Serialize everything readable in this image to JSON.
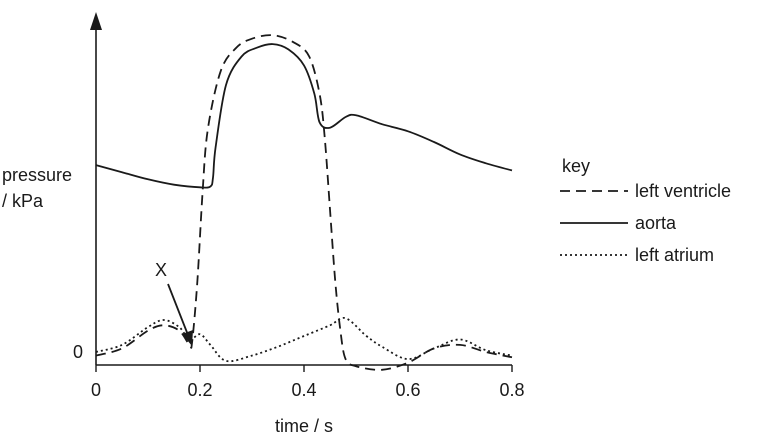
{
  "chart_data": {
    "type": "line",
    "xlabel": "time / s",
    "ylabel_line1": "pressure",
    "ylabel_line2": "/ kPa",
    "xlim": [
      0,
      0.8
    ],
    "x_ticks": [
      "0",
      "0.2",
      "0.4",
      "0.6",
      "0.8"
    ],
    "y_tick_zero": "0",
    "grid": false,
    "legend": {
      "title": "key",
      "placement": "right"
    },
    "annotation": {
      "label": "X",
      "x": 0.18,
      "y": 0.4
    },
    "series": [
      {
        "name": "left ventricle",
        "style": "dashed",
        "x": [
          0.0,
          0.05,
          0.1,
          0.13,
          0.16,
          0.18,
          0.185,
          0.195,
          0.205,
          0.215,
          0.24,
          0.27,
          0.3,
          0.34,
          0.38,
          0.41,
          0.43,
          0.44,
          0.45,
          0.46,
          0.47,
          0.48,
          0.5,
          0.55,
          0.6,
          0.65,
          0.7,
          0.75,
          0.8
        ],
        "y": [
          -0.2,
          0.2,
          1.2,
          1.5,
          1.2,
          0.4,
          0.6,
          4,
          9,
          12.5,
          15.8,
          17.1,
          17.6,
          17.8,
          17.4,
          16.6,
          14.5,
          12,
          8,
          4,
          1.2,
          -0.4,
          -0.8,
          -1.0,
          -0.6,
          0.2,
          0.4,
          0.0,
          -0.3
        ]
      },
      {
        "name": "aorta",
        "style": "solid",
        "x": [
          0.0,
          0.05,
          0.1,
          0.15,
          0.2,
          0.22,
          0.225,
          0.23,
          0.25,
          0.28,
          0.31,
          0.34,
          0.37,
          0.4,
          0.42,
          0.43,
          0.45,
          0.48,
          0.5,
          0.55,
          0.6,
          0.65,
          0.7,
          0.75,
          0.8
        ],
        "y": [
          10.5,
          10.1,
          9.7,
          9.4,
          9.25,
          9.3,
          9.8,
          11.5,
          15,
          16.6,
          17.1,
          17.3,
          17.0,
          16.1,
          14.5,
          12.9,
          12.6,
          13.2,
          13.3,
          12.8,
          12.4,
          11.8,
          11.1,
          10.6,
          10.2
        ]
      },
      {
        "name": "left atrium",
        "style": "dotted",
        "x": [
          0.0,
          0.05,
          0.1,
          0.13,
          0.16,
          0.18,
          0.2,
          0.22,
          0.25,
          0.3,
          0.35,
          0.4,
          0.45,
          0.48,
          0.52,
          0.55,
          0.6,
          0.65,
          0.7,
          0.75,
          0.8
        ],
        "y": [
          0.0,
          0.4,
          1.4,
          1.8,
          1.4,
          0.7,
          1.0,
          0.4,
          -0.5,
          -0.2,
          0.3,
          0.9,
          1.5,
          1.9,
          0.9,
          0.3,
          -0.4,
          0.2,
          0.7,
          0.1,
          -0.2
        ]
      }
    ]
  }
}
